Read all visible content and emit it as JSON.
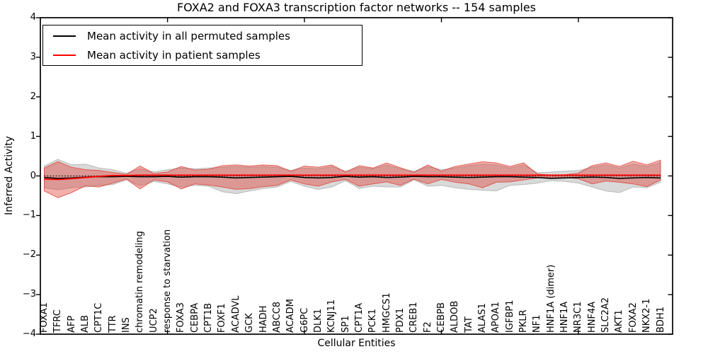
{
  "title": "FOXA2 and FOXA3 transcription factor networks -- 154 samples",
  "axes": {
    "xlabel": "Cellular Entities",
    "ylabel": "Inferred Activity",
    "ylim": [
      -4,
      4
    ],
    "yticks": [
      -4,
      -3,
      -2,
      -1,
      0,
      1,
      2,
      3,
      4
    ],
    "xtick_major_indices": [
      9,
      19,
      29,
      39
    ]
  },
  "legend": {
    "items": [
      {
        "label": "Mean activity in all permuted samples",
        "color": "#000000"
      },
      {
        "label": "Mean activity in patient samples",
        "color": "#ff0000"
      }
    ],
    "position": "upper left"
  },
  "colors": {
    "permuted_line": "#000000",
    "patient_line": "#ff0000",
    "permuted_band_fill": "rgba(128,128,128,0.30)",
    "permuted_band_edge": "rgba(128,128,128,0.45)",
    "patient_band_fill": "rgba(225,55,45,0.40)",
    "patient_band_edge": "rgba(220,60,50,0.75)",
    "zero_line": "#000000",
    "frame": "#000000"
  },
  "chart_data": {
    "type": "line",
    "title": "FOXA2 and FOXA3 transcription factor networks -- 154 samples",
    "xlabel": "Cellular Entities",
    "ylabel": "Inferred Activity",
    "ylim": [
      -4,
      4
    ],
    "grid": false,
    "legend_position": "upper left",
    "zero_reference_line": {
      "value": 0,
      "style": "dotted",
      "color": "#000000"
    },
    "categories": [
      "FOXA1",
      "TFRC",
      "AFP",
      "ALB",
      "CPT1C",
      "TTR",
      "INS",
      "chromatin remodeling",
      "UCP2",
      "response to starvation",
      "FOXA3",
      "CEBPA",
      "CPT1B",
      "FOXF1",
      "ACADVL",
      "GCK",
      "HADH",
      "ABCC8",
      "ACADM",
      "G6PC",
      "DLK1",
      "KCNJ11",
      "SP1",
      "CPT1A",
      "PCK1",
      "HMGCS1",
      "PDX1",
      "CREB1",
      "F2",
      "CEBPB",
      "ALDOB",
      "TAT",
      "ALAS1",
      "APOA1",
      "IGFBP1",
      "PKLR",
      "NF1",
      "HNF1A (dimer)",
      "HNF1A",
      "NR3C1",
      "HNF4A",
      "SLC2A2",
      "AKT1",
      "FOXA2",
      "NKX2-1",
      "BDH1"
    ],
    "series": [
      {
        "name": "Mean activity in all permuted samples",
        "style": "solid",
        "color": "#000000",
        "values": [
          -0.04,
          -0.06,
          -0.05,
          -0.03,
          -0.02,
          -0.02,
          -0.01,
          -0.02,
          -0.02,
          -0.01,
          -0.03,
          -0.02,
          -0.02,
          -0.03,
          -0.05,
          -0.04,
          -0.03,
          -0.02,
          -0.01,
          -0.04,
          -0.05,
          -0.04,
          -0.01,
          -0.03,
          -0.02,
          -0.04,
          -0.03,
          -0.01,
          -0.02,
          -0.02,
          -0.03,
          -0.04,
          -0.03,
          -0.02,
          -0.02,
          -0.03,
          -0.04,
          -0.06,
          -0.05,
          -0.04,
          -0.03,
          -0.04,
          -0.06,
          -0.05,
          -0.04,
          -0.05
        ]
      },
      {
        "name": "Mean activity in patient samples",
        "style": "solid",
        "color": "#ff0000",
        "values": [
          -0.08,
          -0.09,
          -0.07,
          -0.04,
          -0.01,
          0.01,
          0.01,
          0.02,
          0.02,
          0.02,
          0.02,
          0.02,
          0.02,
          0.02,
          0.02,
          0.02,
          0.02,
          0.02,
          0.02,
          0.02,
          0.02,
          0.02,
          0.02,
          0.02,
          0.02,
          0.02,
          0.02,
          0.02,
          0.02,
          0.02,
          0.02,
          0.02,
          0.02,
          0.02,
          0.02,
          0.02,
          0.02,
          0.02,
          0.02,
          0.02,
          0.02,
          0.02,
          0.02,
          0.02,
          0.02,
          0.02
        ]
      }
    ],
    "bands": [
      {
        "name": "permuted samples spread",
        "upper": [
          0.25,
          0.42,
          0.28,
          0.3,
          0.2,
          0.16,
          0.07,
          0.18,
          0.1,
          0.16,
          0.2,
          0.18,
          0.2,
          0.22,
          0.24,
          0.22,
          0.24,
          0.22,
          0.14,
          0.2,
          0.18,
          0.24,
          0.12,
          0.22,
          0.18,
          0.28,
          0.18,
          0.12,
          0.24,
          0.16,
          0.2,
          0.26,
          0.3,
          0.28,
          0.2,
          0.28,
          0.08,
          0.1,
          0.12,
          0.14,
          0.22,
          0.28,
          0.2,
          0.3,
          0.24,
          0.34
        ],
        "lower": [
          -0.3,
          -0.35,
          -0.3,
          -0.28,
          -0.24,
          -0.22,
          -0.1,
          -0.25,
          -0.14,
          -0.2,
          -0.28,
          -0.24,
          -0.26,
          -0.4,
          -0.45,
          -0.38,
          -0.32,
          -0.28,
          -0.14,
          -0.26,
          -0.34,
          -0.28,
          -0.12,
          -0.32,
          -0.26,
          -0.28,
          -0.28,
          -0.1,
          -0.26,
          -0.24,
          -0.3,
          -0.34,
          -0.36,
          -0.38,
          -0.24,
          -0.22,
          -0.18,
          -0.12,
          -0.14,
          -0.18,
          -0.28,
          -0.38,
          -0.42,
          -0.28,
          -0.3,
          -0.16
        ]
      },
      {
        "name": "patient samples spread",
        "upper": [
          0.2,
          0.36,
          0.22,
          0.16,
          0.14,
          0.09,
          0.04,
          0.25,
          0.06,
          0.1,
          0.24,
          0.15,
          0.17,
          0.26,
          0.28,
          0.25,
          0.28,
          0.26,
          0.12,
          0.25,
          0.22,
          0.28,
          0.1,
          0.26,
          0.2,
          0.33,
          0.21,
          0.09,
          0.28,
          0.12,
          0.24,
          0.3,
          0.36,
          0.33,
          0.24,
          0.33,
          0.05,
          0.02,
          0.03,
          0.07,
          0.26,
          0.33,
          0.24,
          0.37,
          0.28,
          0.4
        ],
        "lower": [
          -0.38,
          -0.55,
          -0.42,
          -0.25,
          -0.28,
          -0.18,
          -0.08,
          -0.33,
          -0.1,
          -0.15,
          -0.33,
          -0.2,
          -0.23,
          -0.28,
          -0.34,
          -0.32,
          -0.27,
          -0.24,
          -0.1,
          -0.2,
          -0.26,
          -0.15,
          -0.09,
          -0.26,
          -0.2,
          -0.15,
          -0.24,
          -0.08,
          -0.2,
          -0.09,
          -0.16,
          -0.2,
          -0.3,
          -0.16,
          -0.15,
          -0.1,
          -0.05,
          -0.03,
          -0.04,
          -0.07,
          -0.2,
          -0.13,
          -0.16,
          -0.2,
          -0.27,
          -0.1
        ]
      }
    ]
  }
}
